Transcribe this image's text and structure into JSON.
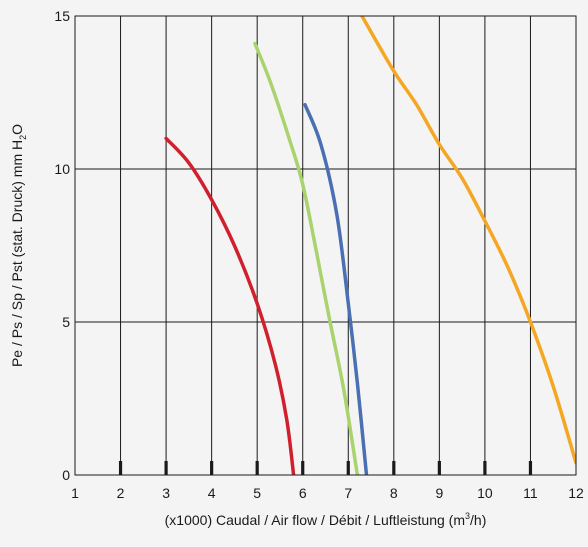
{
  "chart_data": {
    "type": "line",
    "xlabel": {
      "prefix": "(x1000) Caudal / Air flow / Débit / Luftleistung (m",
      "sup": "3",
      "suffix": "/h)"
    },
    "ylabel": {
      "prefix": "Pe / Ps / Sp / Pst (stat. Druck) mm H",
      "sub": "2",
      "suffix": "O"
    },
    "xlim": [
      1,
      12
    ],
    "ylim": [
      0,
      15
    ],
    "xticks": [
      "1",
      "2",
      "3",
      "4",
      "5",
      "6",
      "7",
      "8",
      "9",
      "10",
      "11",
      "12"
    ],
    "yticks": [
      "0",
      "5",
      "10",
      "15"
    ],
    "grid": true,
    "series": [
      {
        "color": "#d0202e",
        "points": [
          [
            3.0,
            11.0
          ],
          [
            3.5,
            10.2
          ],
          [
            4.0,
            9.0
          ],
          [
            4.5,
            7.5
          ],
          [
            5.0,
            5.6
          ],
          [
            5.4,
            3.6
          ],
          [
            5.65,
            1.8
          ],
          [
            5.8,
            0.0
          ]
        ]
      },
      {
        "color": "#a9d36c",
        "points": [
          [
            4.95,
            14.1
          ],
          [
            5.3,
            12.8
          ],
          [
            5.7,
            11.0
          ],
          [
            6.0,
            9.5
          ],
          [
            6.3,
            7.3
          ],
          [
            6.6,
            5.0
          ],
          [
            6.9,
            2.8
          ],
          [
            7.2,
            0.0
          ]
        ]
      },
      {
        "color": "#4a6fb3",
        "points": [
          [
            6.05,
            12.1
          ],
          [
            6.4,
            10.8
          ],
          [
            6.75,
            8.5
          ],
          [
            7.0,
            5.6
          ],
          [
            7.2,
            3.0
          ],
          [
            7.4,
            0.0
          ]
        ]
      },
      {
        "color": "#f5a623",
        "points": [
          [
            7.3,
            15.0
          ],
          [
            8.0,
            13.2
          ],
          [
            8.5,
            12.1
          ],
          [
            9.0,
            10.8
          ],
          [
            9.5,
            9.7
          ],
          [
            10.0,
            8.3
          ],
          [
            10.5,
            6.8
          ],
          [
            11.0,
            5.0
          ],
          [
            11.5,
            2.9
          ],
          [
            12.0,
            0.4
          ]
        ]
      }
    ]
  }
}
